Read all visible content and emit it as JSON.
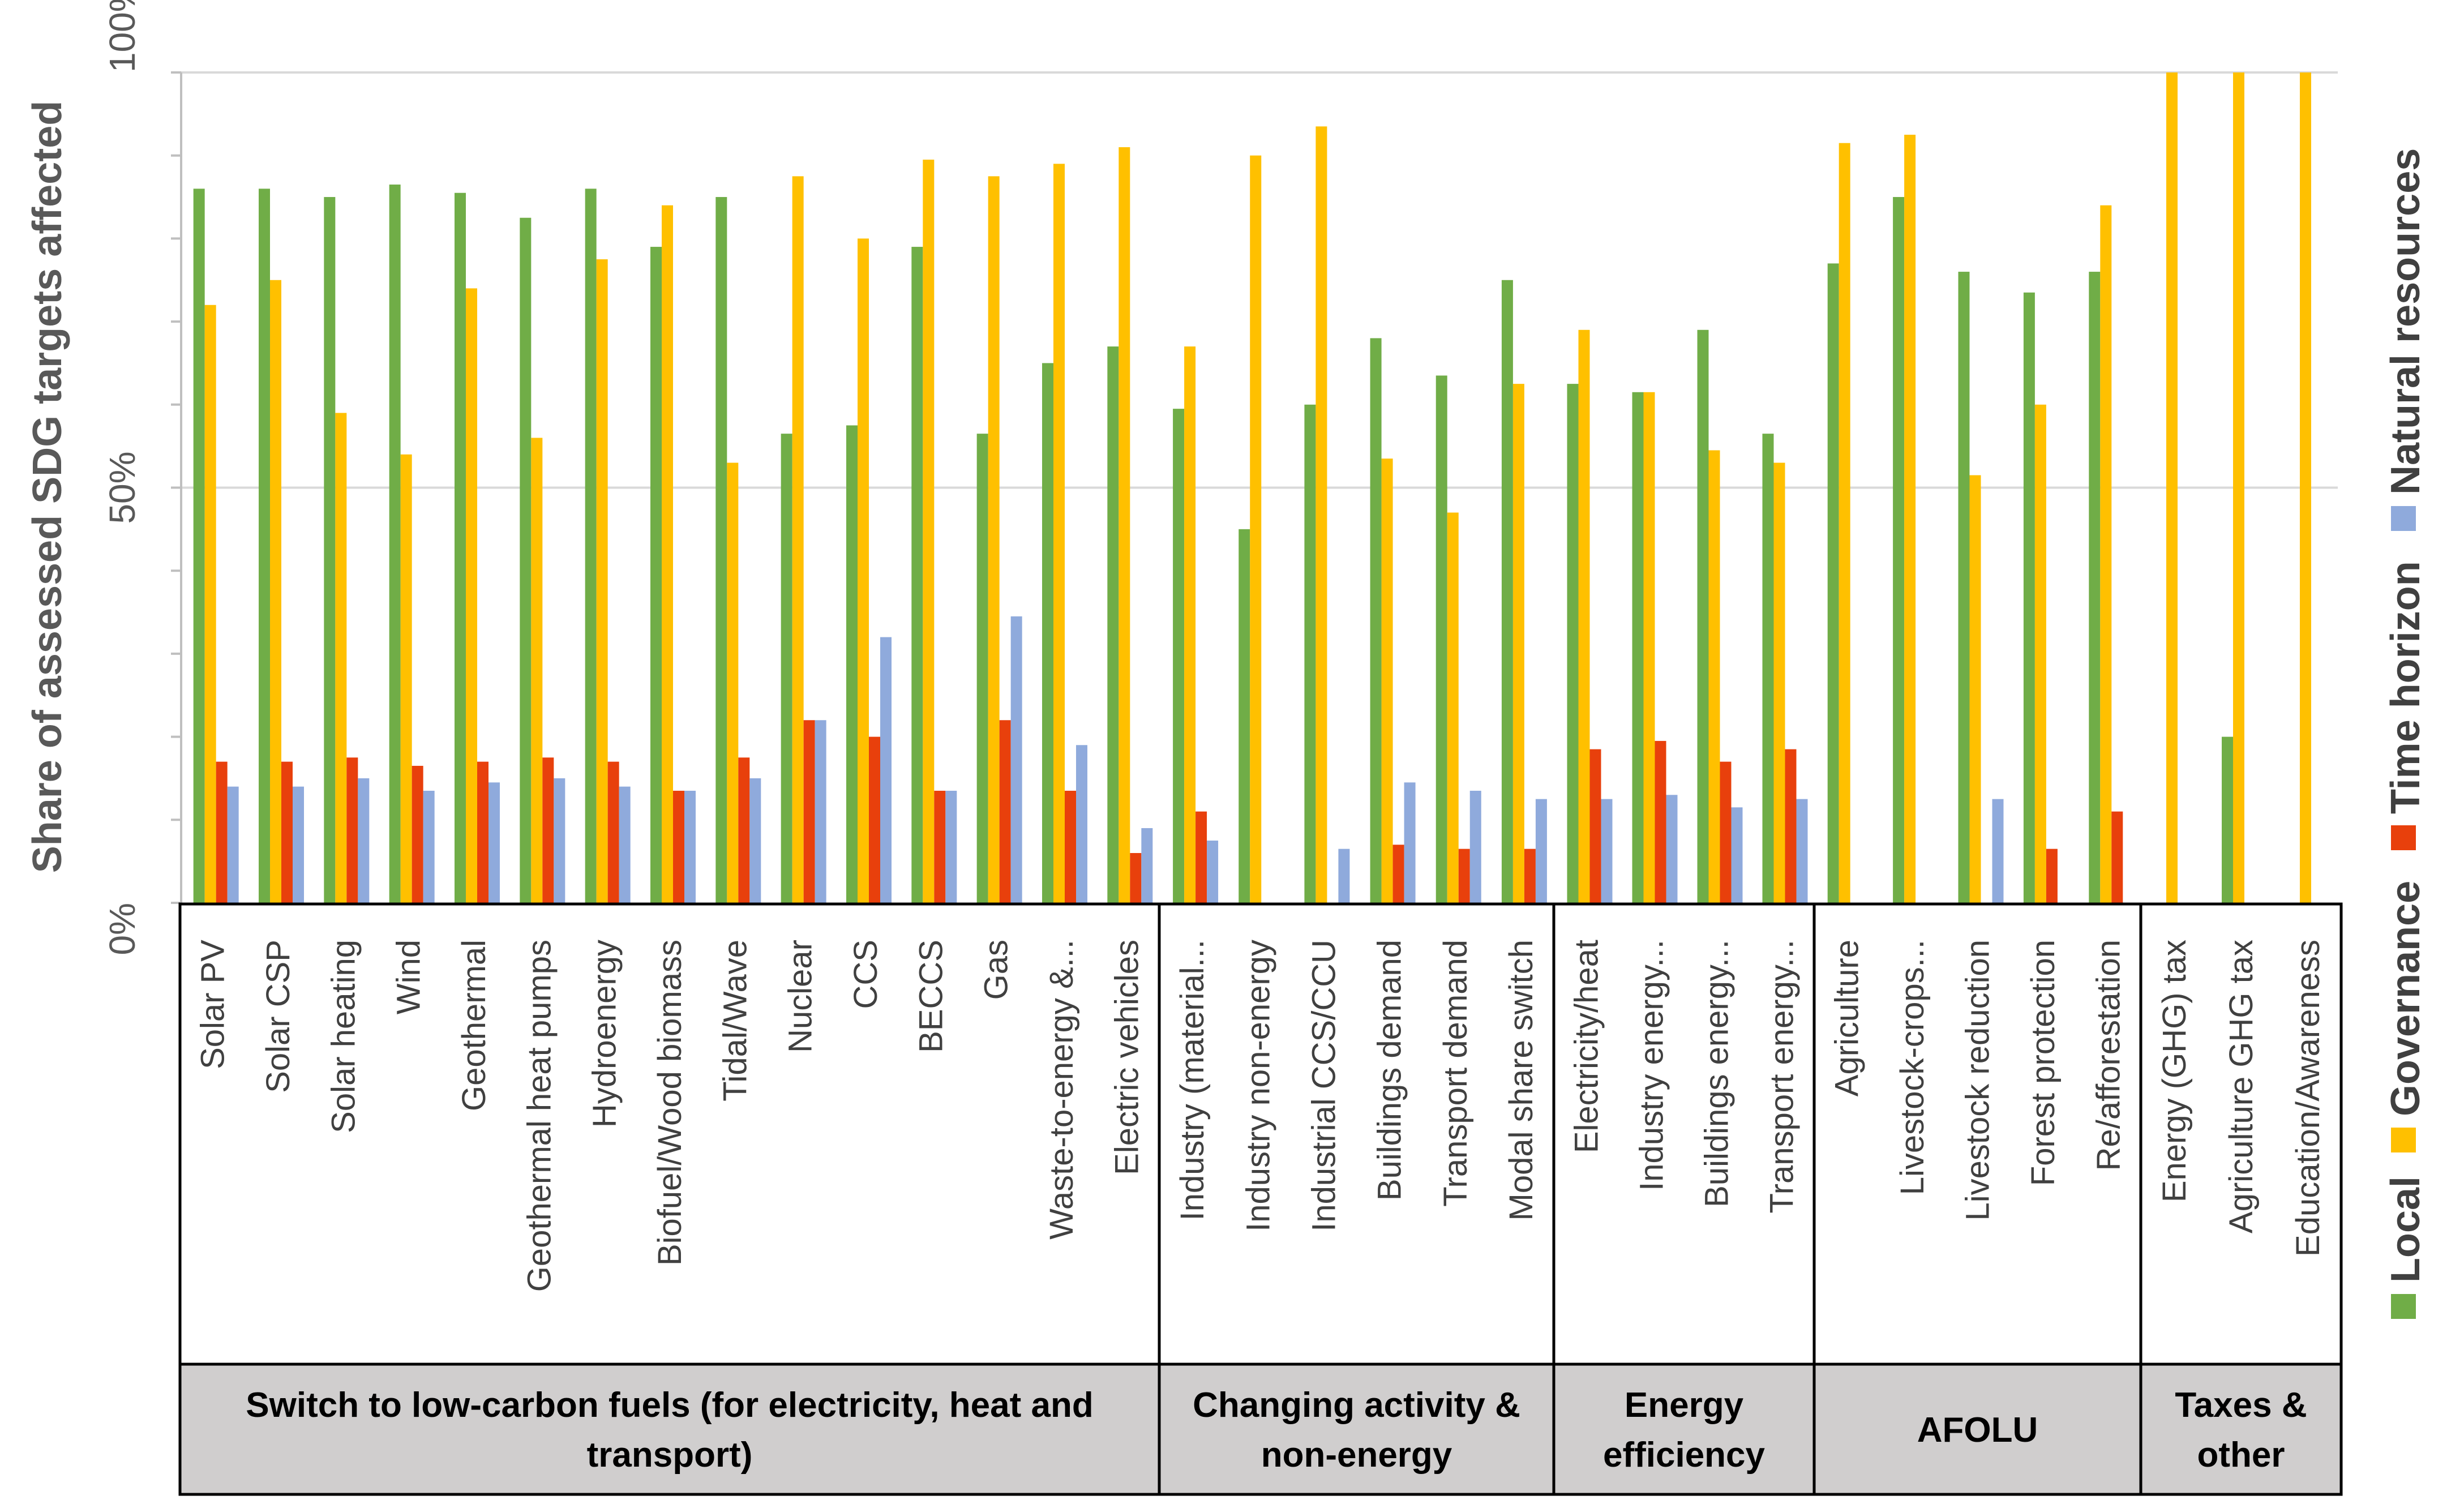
{
  "chart_data": {
    "type": "bar",
    "title": "",
    "ylabel": "Share of assessed SDG targets affected",
    "xlabel": "",
    "ylim": [
      0,
      100
    ],
    "yticks": [
      0,
      50,
      100
    ],
    "ytick_labels": [
      "0%",
      "50%",
      "100%"
    ],
    "grid": true,
    "legend_position": "right",
    "colors": {
      "Local": "#70AD47",
      "Governance": "#FFC000",
      "Time horizon": "#E8400C",
      "Natural resources": "#8FAADC"
    },
    "categories": [
      "Solar PV",
      "Solar CSP",
      "Solar heating",
      "Wind",
      "Geothermal",
      "Geothermal heat pumps",
      "Hydroenergy",
      "Biofuel/Wood biomass",
      "Tidal/Wave",
      "Nuclear",
      "CCS",
      "BECCS",
      "Gas",
      "Waste-to-energy &...",
      "Electric vehicles",
      "Industry (material...",
      "Industry non-energy",
      "Industrial CCS/CCU",
      "Buildings demand",
      "Transport demand",
      "Modal share switch",
      "Electricity/heat",
      "Industry energy...",
      "Buildings energy...",
      "Transport energy...",
      "Agriculture",
      "Livestock-crops...",
      "Livestock reduction",
      "Forest protection",
      "Re/afforestation",
      "Energy (GHG) tax",
      "Agriculture GHG tax",
      "Education/Awareness"
    ],
    "series": [
      {
        "name": "Local",
        "values": [
          86,
          86,
          85,
          86.5,
          85.5,
          82.5,
          86,
          79,
          85,
          56.5,
          57.5,
          79,
          56.5,
          65,
          67,
          59.5,
          45,
          60,
          68,
          63.5,
          75,
          62.5,
          61.5,
          69,
          56.5,
          77,
          85,
          76,
          73.5,
          76,
          0,
          20,
          0
        ]
      },
      {
        "name": "Governance",
        "values": [
          72,
          75,
          59,
          54,
          74,
          56,
          77.5,
          84,
          53,
          87.5,
          80,
          89.5,
          87.5,
          89,
          91,
          67,
          90,
          93.5,
          53.5,
          47,
          62.5,
          69,
          61.5,
          54.5,
          53,
          91.5,
          92.5,
          51.5,
          60,
          84,
          100,
          100,
          100
        ]
      },
      {
        "name": "Time horizon",
        "values": [
          17,
          17,
          17.5,
          16.5,
          17,
          17.5,
          17,
          13.5,
          17.5,
          22,
          20,
          13.5,
          22,
          13.5,
          6,
          11,
          0,
          0,
          7,
          6.5,
          6.5,
          18.5,
          19.5,
          17,
          18.5,
          0,
          0,
          0,
          6.5,
          11,
          0,
          0,
          0
        ]
      },
      {
        "name": "Natural resources",
        "values": [
          14,
          14,
          15,
          13.5,
          14.5,
          15,
          14,
          13.5,
          15,
          22,
          32,
          13.5,
          34.5,
          19,
          9,
          7.5,
          0,
          6.5,
          14.5,
          13.5,
          12.5,
          12.5,
          13,
          11.5,
          12.5,
          0,
          0,
          12.5,
          0,
          0,
          0,
          0,
          0
        ]
      }
    ],
    "groups": [
      {
        "label": "Switch to low-carbon fuels (for electricity, heat and transport)",
        "lines": [
          "Switch to low-carbon fuels (for electricity, heat and",
          "transport)"
        ],
        "count": 15
      },
      {
        "label": "Changing activity & non-energy",
        "lines": [
          "Changing activity &",
          "non-energy"
        ],
        "count": 6
      },
      {
        "label": "Energy efficiency",
        "lines": [
          "Energy",
          "efficiency"
        ],
        "count": 4
      },
      {
        "label": "AFOLU",
        "lines": [
          "AFOLU"
        ],
        "count": 5
      },
      {
        "label": "Taxes & other",
        "lines": [
          "Taxes &",
          "other"
        ],
        "count": 3
      }
    ],
    "legend": [
      "Local",
      "Governance",
      "Time horizon",
      "Natural resources"
    ]
  }
}
